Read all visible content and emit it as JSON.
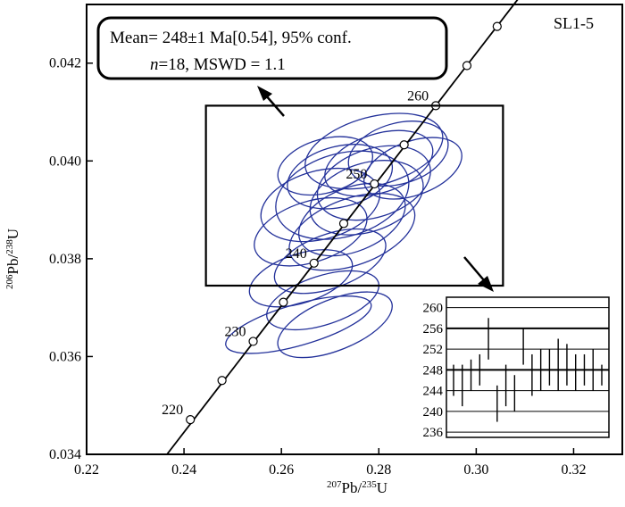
{
  "chart_data": {
    "type": "scatter",
    "title": "",
    "sample": "SL1-5",
    "xlabel": {
      "sup1": "207",
      "main1": "Pb/",
      "sup2": "235",
      "main2": "U"
    },
    "ylabel": {
      "sup1": "206",
      "main1": "Pb/",
      "sup2": "238",
      "main2": "U"
    },
    "xlim": [
      0.22,
      0.33
    ],
    "ylim": [
      0.034,
      0.0432
    ],
    "x_ticks": [
      "0.22",
      "0.24",
      "0.26",
      "0.28",
      "0.30",
      "0.32"
    ],
    "y_ticks": [
      "0.034",
      "0.036",
      "0.038",
      "0.040",
      "0.042"
    ],
    "result_box": {
      "line1": "Mean= 248±1 Ma[0.54], 95% conf.",
      "line2_italic": "n",
      "line2": "=18, MSWD = 1.1"
    },
    "concordia_ages": [
      {
        "label": "220",
        "x": 0.2413,
        "y": 0.03471
      },
      {
        "label": "",
        "x": 0.2478,
        "y": 0.03551
      },
      {
        "label": "230",
        "x": 0.2542,
        "y": 0.03631
      },
      {
        "label": "",
        "x": 0.2604,
        "y": 0.03711
      },
      {
        "label": "240",
        "x": 0.2667,
        "y": 0.03791
      },
      {
        "label": "",
        "x": 0.2728,
        "y": 0.03872
      },
      {
        "label": "250",
        "x": 0.2791,
        "y": 0.03953
      },
      {
        "label": "",
        "x": 0.2852,
        "y": 0.04033
      },
      {
        "label": "260",
        "x": 0.2917,
        "y": 0.04113
      },
      {
        "label": "",
        "x": 0.2981,
        "y": 0.04195
      },
      {
        "label": "",
        "x": 0.3043,
        "y": 0.04275
      }
    ],
    "concordia_line": {
      "x": [
        0.2365,
        0.3085
      ],
      "y": [
        0.034,
        0.0433
      ]
    },
    "zoom_box": {
      "x": [
        0.2445,
        0.3055
      ],
      "y": [
        0.03745,
        0.04113
      ]
    },
    "ellipses": [
      {
        "cx": 0.2635,
        "cy": 0.03665,
        "rx": 0.0155,
        "ry": 0.00042,
        "angle": -16
      },
      {
        "cx": 0.271,
        "cy": 0.03665,
        "rx": 0.0125,
        "ry": 0.00052,
        "angle": -22
      },
      {
        "cx": 0.2685,
        "cy": 0.03715,
        "rx": 0.012,
        "ry": 0.0005,
        "angle": -18
      },
      {
        "cx": 0.264,
        "cy": 0.0376,
        "rx": 0.011,
        "ry": 0.0005,
        "angle": -18
      },
      {
        "cx": 0.27,
        "cy": 0.03795,
        "rx": 0.012,
        "ry": 0.00055,
        "angle": -20
      },
      {
        "cx": 0.266,
        "cy": 0.03855,
        "rx": 0.012,
        "ry": 0.00062,
        "angle": -18
      },
      {
        "cx": 0.2745,
        "cy": 0.0388,
        "rx": 0.0115,
        "ry": 0.00065,
        "angle": -22
      },
      {
        "cx": 0.268,
        "cy": 0.0391,
        "rx": 0.0125,
        "ry": 0.0007,
        "angle": -15
      },
      {
        "cx": 0.2775,
        "cy": 0.03925,
        "rx": 0.012,
        "ry": 0.0007,
        "angle": -18
      },
      {
        "cx": 0.2725,
        "cy": 0.0393,
        "rx": 0.014,
        "ry": 0.00085,
        "angle": -16
      },
      {
        "cx": 0.279,
        "cy": 0.03955,
        "rx": 0.012,
        "ry": 0.0007,
        "angle": -18
      },
      {
        "cx": 0.272,
        "cy": 0.03968,
        "rx": 0.011,
        "ry": 0.00062,
        "angle": -14
      },
      {
        "cx": 0.28,
        "cy": 0.03995,
        "rx": 0.0115,
        "ry": 0.0006,
        "angle": -18
      },
      {
        "cx": 0.284,
        "cy": 0.04015,
        "rx": 0.0105,
        "ry": 0.00062,
        "angle": -16
      },
      {
        "cx": 0.279,
        "cy": 0.0402,
        "rx": 0.0145,
        "ry": 0.0007,
        "angle": -15
      },
      {
        "cx": 0.2745,
        "cy": 0.03855,
        "rx": 0.0135,
        "ry": 0.00068,
        "angle": -20
      },
      {
        "cx": 0.287,
        "cy": 0.03985,
        "rx": 0.0105,
        "ry": 0.00055,
        "angle": -20
      },
      {
        "cx": 0.269,
        "cy": 0.0399,
        "rx": 0.01,
        "ry": 0.00055,
        "angle": -16
      }
    ],
    "inset": {
      "ylim": [
        235,
        262
      ],
      "y_ticks": [
        "236",
        "240",
        "244",
        "248",
        "252",
        "256",
        "260"
      ],
      "mean_line": 248,
      "upper_line": 256,
      "error_bars": [
        {
          "low": 243,
          "high": 249
        },
        {
          "low": 241,
          "high": 249
        },
        {
          "low": 244,
          "high": 250
        },
        {
          "low": 245,
          "high": 251
        },
        {
          "low": 250,
          "high": 258
        },
        {
          "low": 238,
          "high": 245
        },
        {
          "low": 241,
          "high": 249
        },
        {
          "low": 240,
          "high": 247
        },
        {
          "low": 249,
          "high": 256
        },
        {
          "low": 243,
          "high": 251
        },
        {
          "low": 244,
          "high": 252
        },
        {
          "low": 245,
          "high": 252
        },
        {
          "low": 244,
          "high": 254
        },
        {
          "low": 245,
          "high": 253
        },
        {
          "low": 244,
          "high": 251
        },
        {
          "low": 245,
          "high": 251
        },
        {
          "low": 244,
          "high": 252
        },
        {
          "low": 245,
          "high": 249
        }
      ]
    },
    "colors": {
      "ellipse": "#23319a",
      "axis": "#000000",
      "point_fill": "#ffffff"
    }
  }
}
